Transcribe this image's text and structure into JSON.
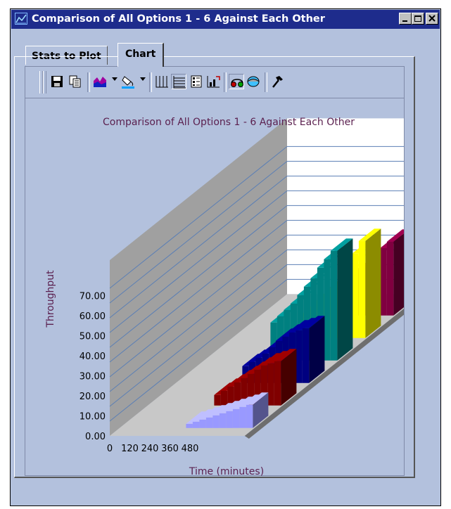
{
  "window": {
    "title": "Comparison of All Options 1 - 6 Against Each Other",
    "controls": [
      "minimize-icon",
      "maximize-icon",
      "close-icon"
    ]
  },
  "tabs": [
    {
      "label": "Stats to Plot",
      "active": false
    },
    {
      "label": "Chart",
      "active": true
    }
  ],
  "toolbar": {
    "items": [
      "save-icon",
      "copy-icon",
      "chart-type-icon",
      "fill-color-icon",
      "x-grid-icon",
      "y-grid-icon",
      "legend-icon",
      "axis-properties-icon",
      "3d-view-icon",
      "rotate-icon",
      "hammer-icon"
    ]
  },
  "colors": {
    "window_bg": "#b3c1dd",
    "title_bar": "#1e2c8c",
    "chart_title": "#5a1f4e",
    "series": [
      "#9999ff",
      "#800000",
      "#000080",
      "#008080",
      "#ffff00",
      "#800040"
    ]
  },
  "chart_data": {
    "type": "bar",
    "view": "3d",
    "title": "Comparison of All Options 1 - 6 Against Each Other",
    "xlabel": "Time (minutes)",
    "ylabel": "Throughput",
    "x_tick_labels": [
      "0",
      "120",
      "240",
      "360",
      "480"
    ],
    "y_tick_labels": [
      "0.00",
      "10.00",
      "20.00",
      "30.00",
      "40.00",
      "50.00",
      "60.00",
      "70.00"
    ],
    "ylim": [
      0,
      70
    ],
    "grid": true,
    "legend": "none",
    "series": [
      {
        "values": [
          2,
          3,
          4,
          5,
          6,
          7,
          8,
          9,
          10,
          11
        ]
      },
      {
        "values": [
          5,
          7,
          9,
          11,
          13,
          15,
          17,
          19,
          20,
          21
        ]
      },
      {
        "values": [
          8,
          10,
          12,
          14,
          17,
          20,
          22,
          24,
          25,
          26
        ]
      },
      {
        "values": [
          18,
          21,
          24,
          27,
          31,
          35,
          39,
          44,
          48,
          52
        ]
      },
      {
        "values": [
          10,
          13,
          16,
          19,
          22,
          25,
          29,
          34,
          40,
          46
        ]
      },
      {
        "values": [
          12,
          14,
          16,
          18,
          20,
          23,
          26,
          29,
          32,
          35
        ]
      }
    ]
  }
}
